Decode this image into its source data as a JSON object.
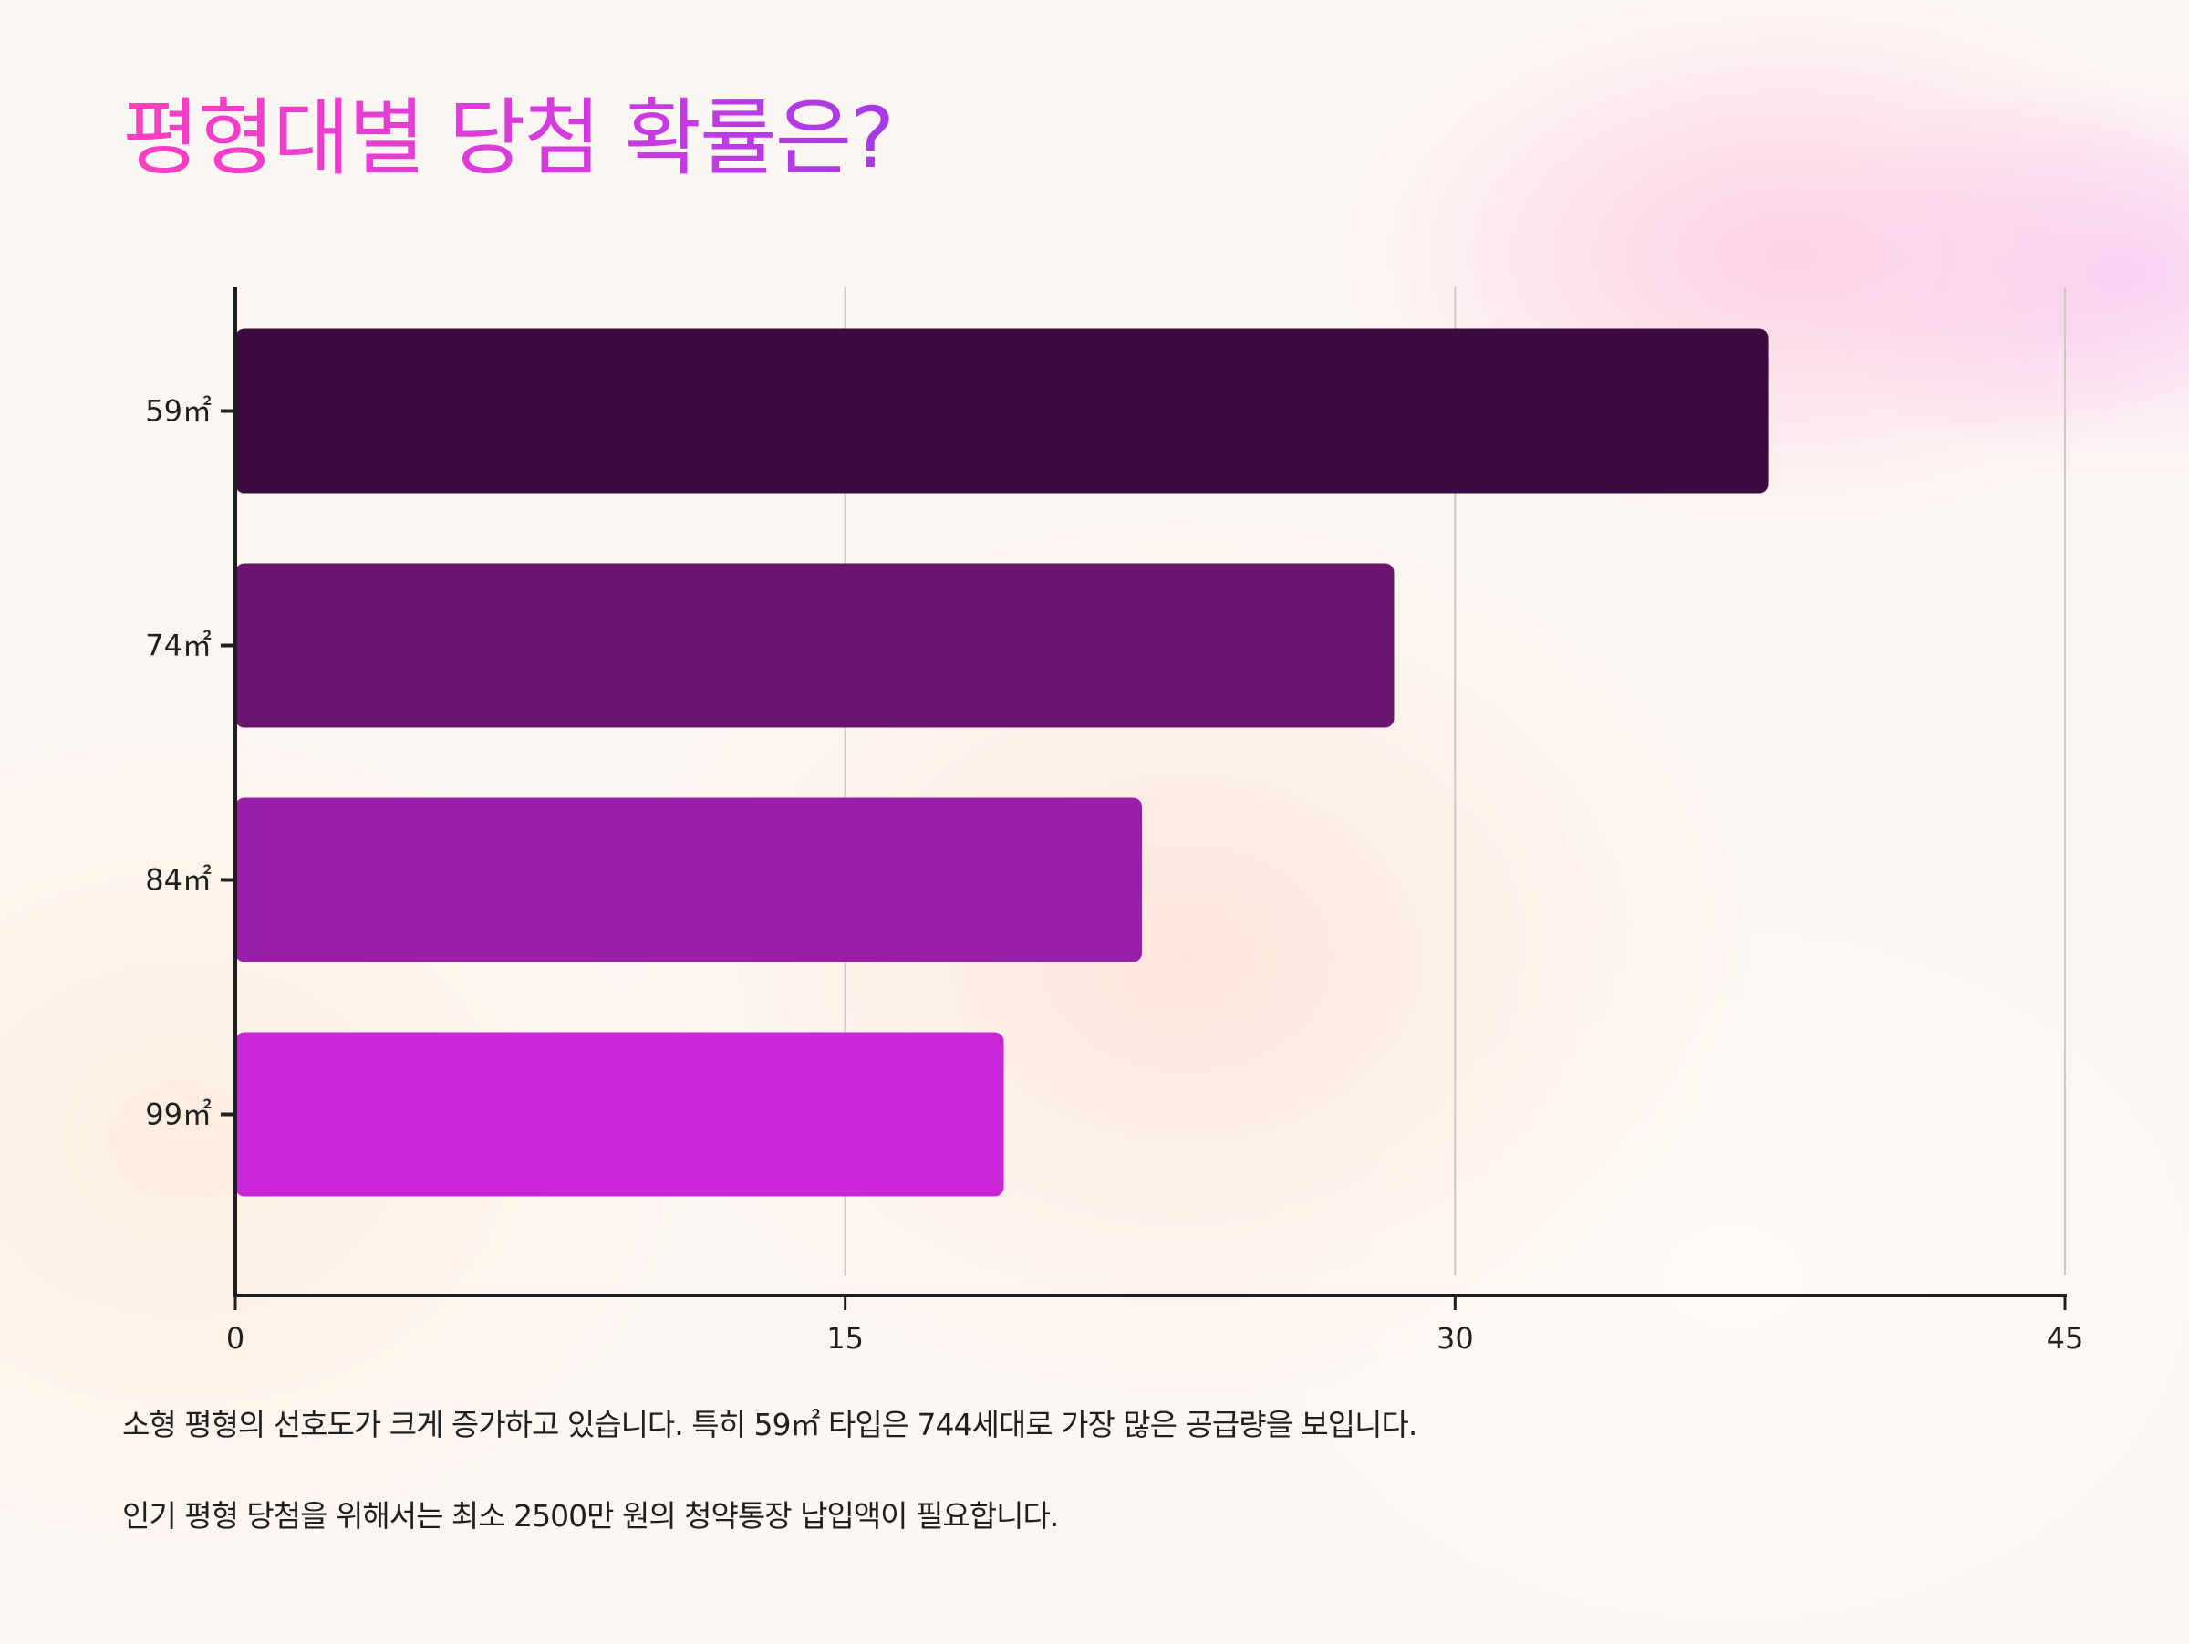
{
  "chart_data": {
    "type": "bar",
    "orientation": "horizontal",
    "title": "평형대별 당첨 확률은?",
    "categories": [
      "59㎡",
      "74㎡",
      "84㎡",
      "99㎡"
    ],
    "values": [
      37.7,
      28.5,
      22.3,
      18.9
    ],
    "xlabel": "",
    "ylabel": "",
    "xlim": [
      0,
      45
    ],
    "xticks": [
      0,
      15,
      30,
      45
    ],
    "grid": "vertical",
    "legend": "none",
    "bar_colors": [
      "#3d0b3f",
      "#6b1570",
      "#9a1fa8",
      "#c926d8"
    ]
  },
  "notes": [
    "소형 평형의 선호도가 크게 증가하고 있습니다. 특히 59㎡ 타입은 744세대로 가장 많은 공급량을 보입니다.",
    "인기 평형 당첨을 위해서는 최소 2500만 원의 청약통장 납입액이 필요합니다."
  ],
  "colors": {
    "axis": "#1f1f1f",
    "grid": "#cfc7c2",
    "text": "#1f1f1f",
    "title_gradient_start": "#ff3fc1",
    "title_gradient_end": "#a53ae6"
  }
}
